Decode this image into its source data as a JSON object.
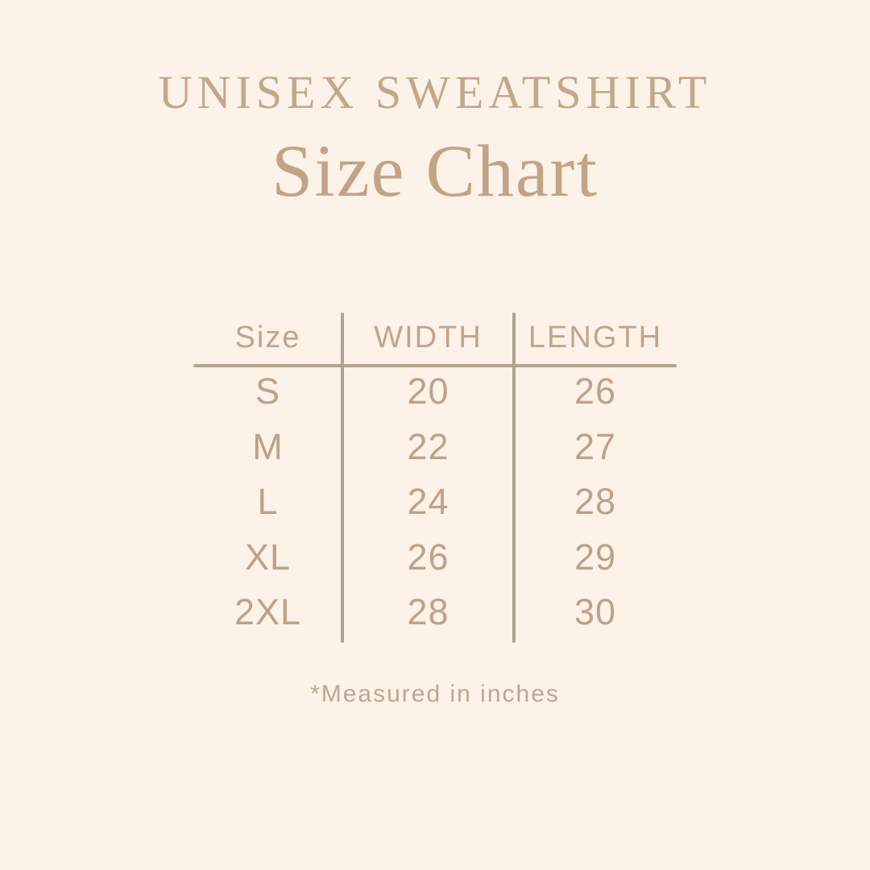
{
  "page": {
    "background_color": "#fcf2e7",
    "accent_text_color": "#c3a385",
    "table_text_color": "#bea189",
    "rule_color": "#b1a291"
  },
  "title": {
    "line1": "UNISEX SWEATSHIRT",
    "line2": "Size Chart"
  },
  "table": {
    "headers": {
      "size": "Size",
      "width": "WIDTH",
      "length": "LENGTH"
    },
    "rows": [
      {
        "size": "S",
        "width": "20",
        "length": "26"
      },
      {
        "size": "M",
        "width": "22",
        "length": "27"
      },
      {
        "size": "L",
        "width": "24",
        "length": "28"
      },
      {
        "size": "XL",
        "width": "26",
        "length": "29"
      },
      {
        "size": "2XL",
        "width": "28",
        "length": "30"
      }
    ]
  },
  "footnote": "*Measured in inches",
  "chart_data": {
    "type": "table",
    "title": "UNISEX SWEATSHIRT Size Chart",
    "columns": [
      "Size",
      "WIDTH",
      "LENGTH"
    ],
    "rows": [
      [
        "S",
        20,
        26
      ],
      [
        "M",
        22,
        27
      ],
      [
        "L",
        24,
        28
      ],
      [
        "XL",
        26,
        29
      ],
      [
        "2XL",
        28,
        30
      ]
    ],
    "units_note": "*Measured in inches"
  }
}
